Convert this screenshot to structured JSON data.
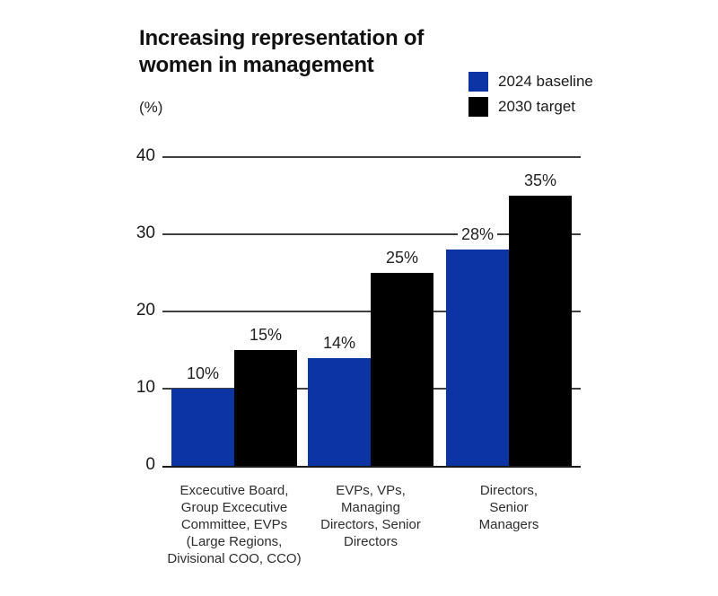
{
  "title": {
    "line1": "Increasing representation of",
    "line2": "women in management"
  },
  "y_axis_unit_label": "(%)",
  "legend": {
    "items": [
      {
        "label": "2024 baseline",
        "color": "#0d34a5"
      },
      {
        "label": "2030 target",
        "color": "#000000"
      }
    ]
  },
  "colors": {
    "baseline_blue": "#0d34a5",
    "target_black": "#000000",
    "gridline": "#404040",
    "axis": "#1a1a1a",
    "background": "#ffffff"
  },
  "chart_data": {
    "type": "bar",
    "title": "Increasing representation of women in management",
    "ylabel": "(%)",
    "ylim": [
      0,
      40
    ],
    "yticks": [
      0,
      10,
      20,
      30,
      40
    ],
    "grid": "horizontal",
    "legend_position": "top-right",
    "categories": [
      "Excecutive Board, Group Excecutive Committee, EVPs (Large Regions, Divisional COO, CCO)",
      "EVPs, VPs, Managing Directors, Senior Directors",
      "Directors, Senior Managers"
    ],
    "category_lines": [
      [
        "Excecutive Board,",
        "Group Excecutive",
        "Committee, EVPs",
        "(Large Regions,",
        "Divisional COO, CCO)"
      ],
      [
        "EVPs, VPs,",
        "Managing",
        "Directors, Senior",
        "Directors"
      ],
      [
        "Directors,",
        "Senior",
        "Managers"
      ]
    ],
    "series": [
      {
        "name": "2024 baseline",
        "color": "#0d34a5",
        "values": [
          10,
          14,
          28
        ],
        "labels": [
          "10%",
          "14%",
          "28%"
        ]
      },
      {
        "name": "2030 target",
        "color": "#000000",
        "values": [
          15,
          25,
          35
        ],
        "labels": [
          "15%",
          "25%",
          "35%"
        ]
      }
    ]
  }
}
